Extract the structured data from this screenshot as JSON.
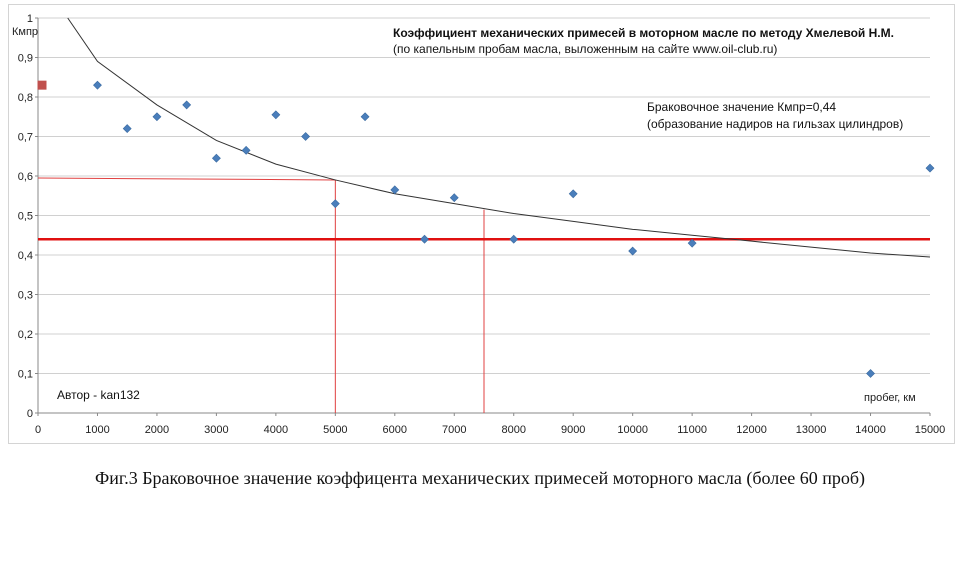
{
  "chart_data": {
    "type": "scatter",
    "title": "Коэффициент механических примесей  в моторном масле по методу  Хмелевой Н.М.",
    "subtitle": "(по капельным пробам масла, выложенным  на сайте www.oil-club.ru)",
    "ylabel": "Кмпр",
    "xlabel": "пробег, км",
    "xlim": [
      0,
      15000
    ],
    "ylim": [
      0,
      1
    ],
    "x_ticks": [
      0,
      1000,
      2000,
      3000,
      4000,
      5000,
      6000,
      7000,
      8000,
      9000,
      10000,
      11000,
      12000,
      13000,
      14000,
      15000
    ],
    "y_ticks": [
      0,
      0.1,
      0.2,
      0.3,
      0.4,
      0.5,
      0.6,
      0.7,
      0.8,
      0.9,
      1
    ],
    "y_tick_labels": [
      "0",
      "0,1",
      "0,2",
      "0,3",
      "0,4",
      "0,5",
      "0,6",
      "0,7",
      "0,8",
      "0,9",
      "1"
    ],
    "grid": "horizontal",
    "series": [
      {
        "marker": "diamond",
        "color": "#4a7ebb",
        "points": [
          [
            1000,
            0.83
          ],
          [
            1500,
            0.72
          ],
          [
            2000,
            0.75
          ],
          [
            2500,
            0.78
          ],
          [
            3000,
            0.645
          ],
          [
            3500,
            0.665
          ],
          [
            4000,
            0.755
          ],
          [
            4500,
            0.7
          ],
          [
            5000,
            0.53
          ],
          [
            5500,
            0.75
          ],
          [
            6000,
            0.565
          ],
          [
            6500,
            0.44
          ],
          [
            7000,
            0.545
          ],
          [
            8000,
            0.44
          ],
          [
            9000,
            0.555
          ],
          [
            10000,
            0.41
          ],
          [
            11000,
            0.43
          ],
          [
            14000,
            0.1
          ],
          [
            15000,
            0.62
          ]
        ]
      },
      {
        "marker": "square",
        "color": "#c0504d",
        "points": [
          [
            0,
            0.83
          ]
        ]
      }
    ],
    "trendline": {
      "type": "logarithmic",
      "color": "#333333",
      "points": [
        [
          500,
          1.0
        ],
        [
          1000,
          0.89
        ],
        [
          2000,
          0.78
        ],
        [
          3000,
          0.69
        ],
        [
          4000,
          0.63
        ],
        [
          5000,
          0.59
        ],
        [
          6000,
          0.555
        ],
        [
          7000,
          0.53
        ],
        [
          8000,
          0.505
        ],
        [
          9000,
          0.485
        ],
        [
          10000,
          0.465
        ],
        [
          11000,
          0.45
        ],
        [
          12000,
          0.435
        ],
        [
          13000,
          0.42
        ],
        [
          14000,
          0.405
        ],
        [
          15000,
          0.395
        ]
      ]
    },
    "threshold": {
      "y": 0.44,
      "color": "#e01010"
    },
    "guides": [
      {
        "from": [
          0,
          0.595
        ],
        "corner": [
          5000,
          0.59
        ],
        "color": "#e04040"
      },
      {
        "from": [
          7500,
          0.515
        ],
        "color": "#e04040"
      }
    ],
    "annotations": {
      "threshold_line1": "Браковочное значение Кмпр=0,44",
      "threshold_line2": "(образование надиров  на гильзах цилиндров)",
      "author": "Автор - kan132"
    }
  },
  "caption": "Фиг.3 Браковочное значение коэффицента механических примесей моторного масла (более 60 проб)"
}
